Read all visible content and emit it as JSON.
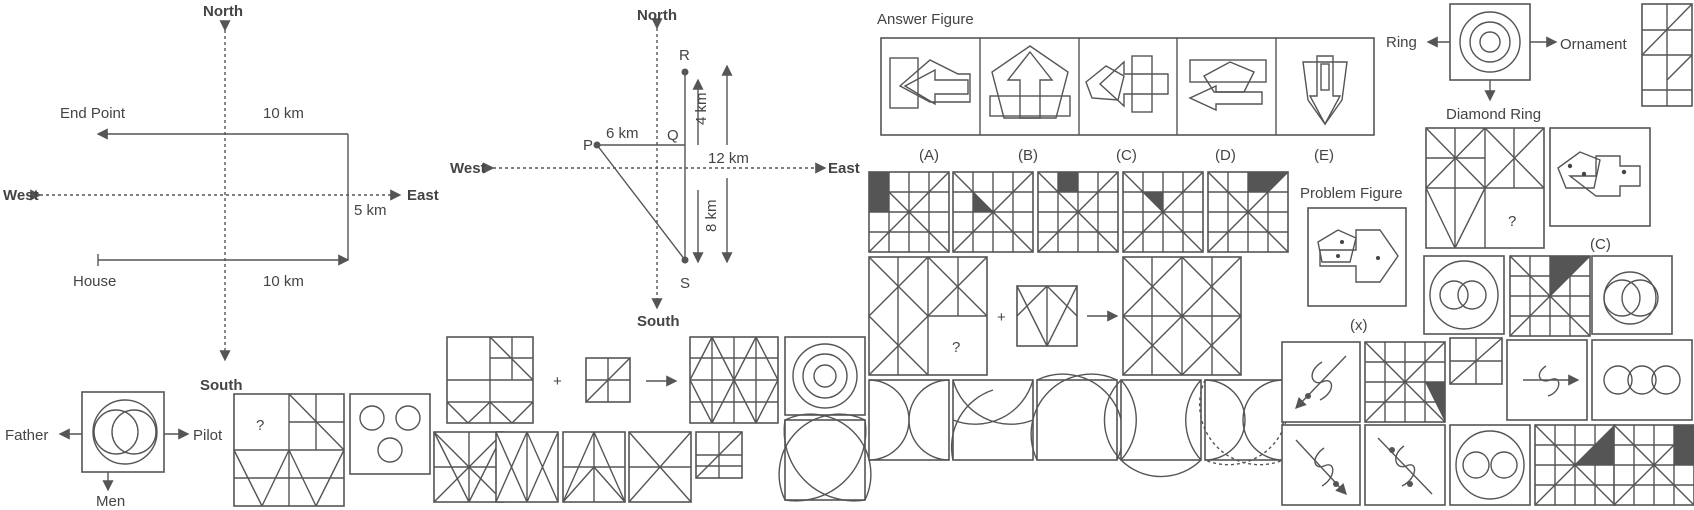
{
  "diagram1": {
    "north": "North",
    "south": "South",
    "west": "West",
    "east": "East",
    "end_point": "End Point",
    "house": "House",
    "top_distance": "10 km",
    "bottom_distance": "10 km",
    "side_distance": "5 km"
  },
  "diagram2": {
    "north": "North",
    "south": "South",
    "west": "West",
    "east": "East",
    "p": "P",
    "q": "Q",
    "r": "R",
    "s": "S",
    "pq": "6 km",
    "qr": "4 km",
    "total": "12 km",
    "qs": "8 km"
  },
  "relation": {
    "left": "Father",
    "right": "Pilot",
    "down": "Men"
  },
  "ring": {
    "left": "Ring",
    "right": "Ornament",
    "down": "Diamond Ring"
  },
  "answer_figure": {
    "title": "Answer Figure",
    "options": [
      "(A)",
      "(B)",
      "(C)",
      "(D)",
      "(E)"
    ]
  },
  "problem_figure": {
    "title": "Problem Figure"
  },
  "misc": {
    "question": "?",
    "plus": "+",
    "c_label": "(C)",
    "x_label": "(x)"
  }
}
